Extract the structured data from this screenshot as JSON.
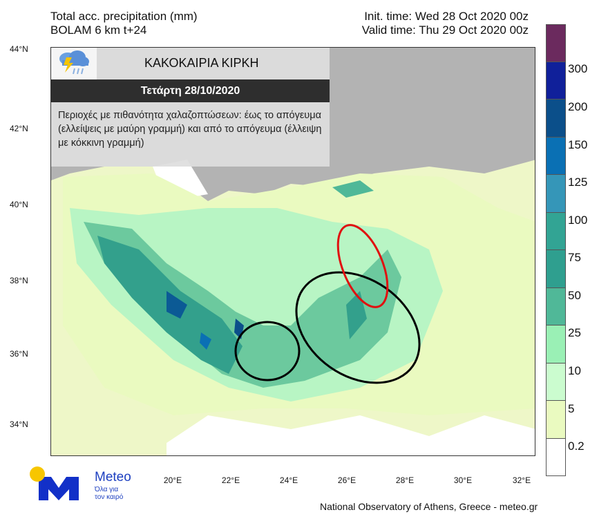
{
  "header": {
    "title_line1": "Total acc. precipitation (mm)",
    "title_line2": "BOLAM 6 km t+24",
    "init_time": "Init. time: Wed 28 Oct 2020 00z",
    "valid_time": "Valid time: Thu 29 Oct 2020 00z"
  },
  "infobox": {
    "icon": "thunderstorm-rain-icon",
    "title": "ΚΑΚΟΚΑΙΡΙΑ ΚΙΡΚΗ",
    "date": "Τετάρτη 28/10/2020",
    "text": "Περιοχές με πιθανότητα χαλαζοπτώσεων: έως το απόγευμα (ελλείψεις με μαύρη γραμμή) και από το απόγευμα (έλλειψη με κόκκινη γραμμή)"
  },
  "axes": {
    "lat_labels": [
      "44°N",
      "42°N",
      "40°N",
      "38°N",
      "36°N",
      "34°N"
    ],
    "lon_labels": [
      "20°E",
      "22°E",
      "24°E",
      "26°E",
      "28°E",
      "30°E",
      "32°E"
    ]
  },
  "legend": {
    "labels": [
      "300",
      "200",
      "150",
      "125",
      "100",
      "75",
      "50",
      "25",
      "10",
      "5",
      "0.2"
    ],
    "colors": [
      "#6b2a5e",
      "#10209a",
      "#0b4f8a",
      "#0a70b4",
      "#3596b8",
      "#32a494",
      "#2f9f8f",
      "#50b898",
      "#9af0b5",
      "#cbfccf",
      "#eafac0",
      "#ffffff"
    ]
  },
  "annotations": {
    "hail_morning_color": "#000000",
    "hail_afternoon_color": "#e01010"
  },
  "logo": {
    "name": "Meteo",
    "tagline_1": "Όλα για",
    "tagline_2": "τον καιρό"
  },
  "footer": "National Observatory of Athens, Greece - meteo.gr"
}
